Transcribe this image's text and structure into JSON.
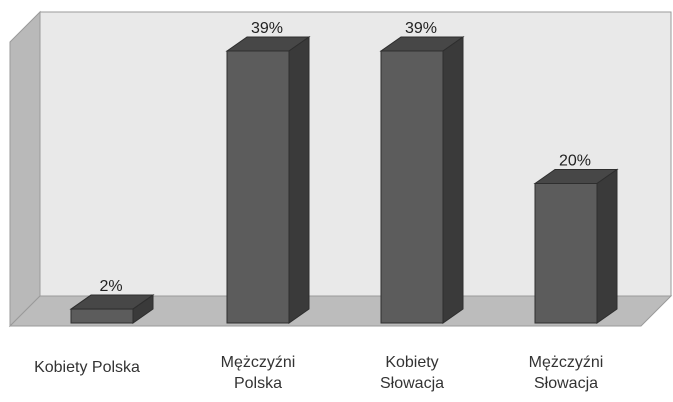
{
  "chart_data": {
    "type": "bar",
    "style": "3d-column",
    "categories": [
      "Kobiety Polska",
      "Mężczyźni\nPolska",
      "Kobiety\nSłowacja",
      "Mężczyźni\nSłowacja"
    ],
    "values": [
      2,
      39,
      39,
      20
    ],
    "data_labels": [
      "2%",
      "39%",
      "39%",
      "20%"
    ],
    "ylim": [
      0,
      40
    ],
    "grid": false,
    "legend": "none",
    "colors": {
      "bar_front": "#5c5c5c",
      "bar_side": "#3a3a3a",
      "bar_top": "#474747",
      "back_wall": "#e9e9e9",
      "side_wall": "#b9b9b9",
      "floor": "#bcbcbc"
    }
  }
}
